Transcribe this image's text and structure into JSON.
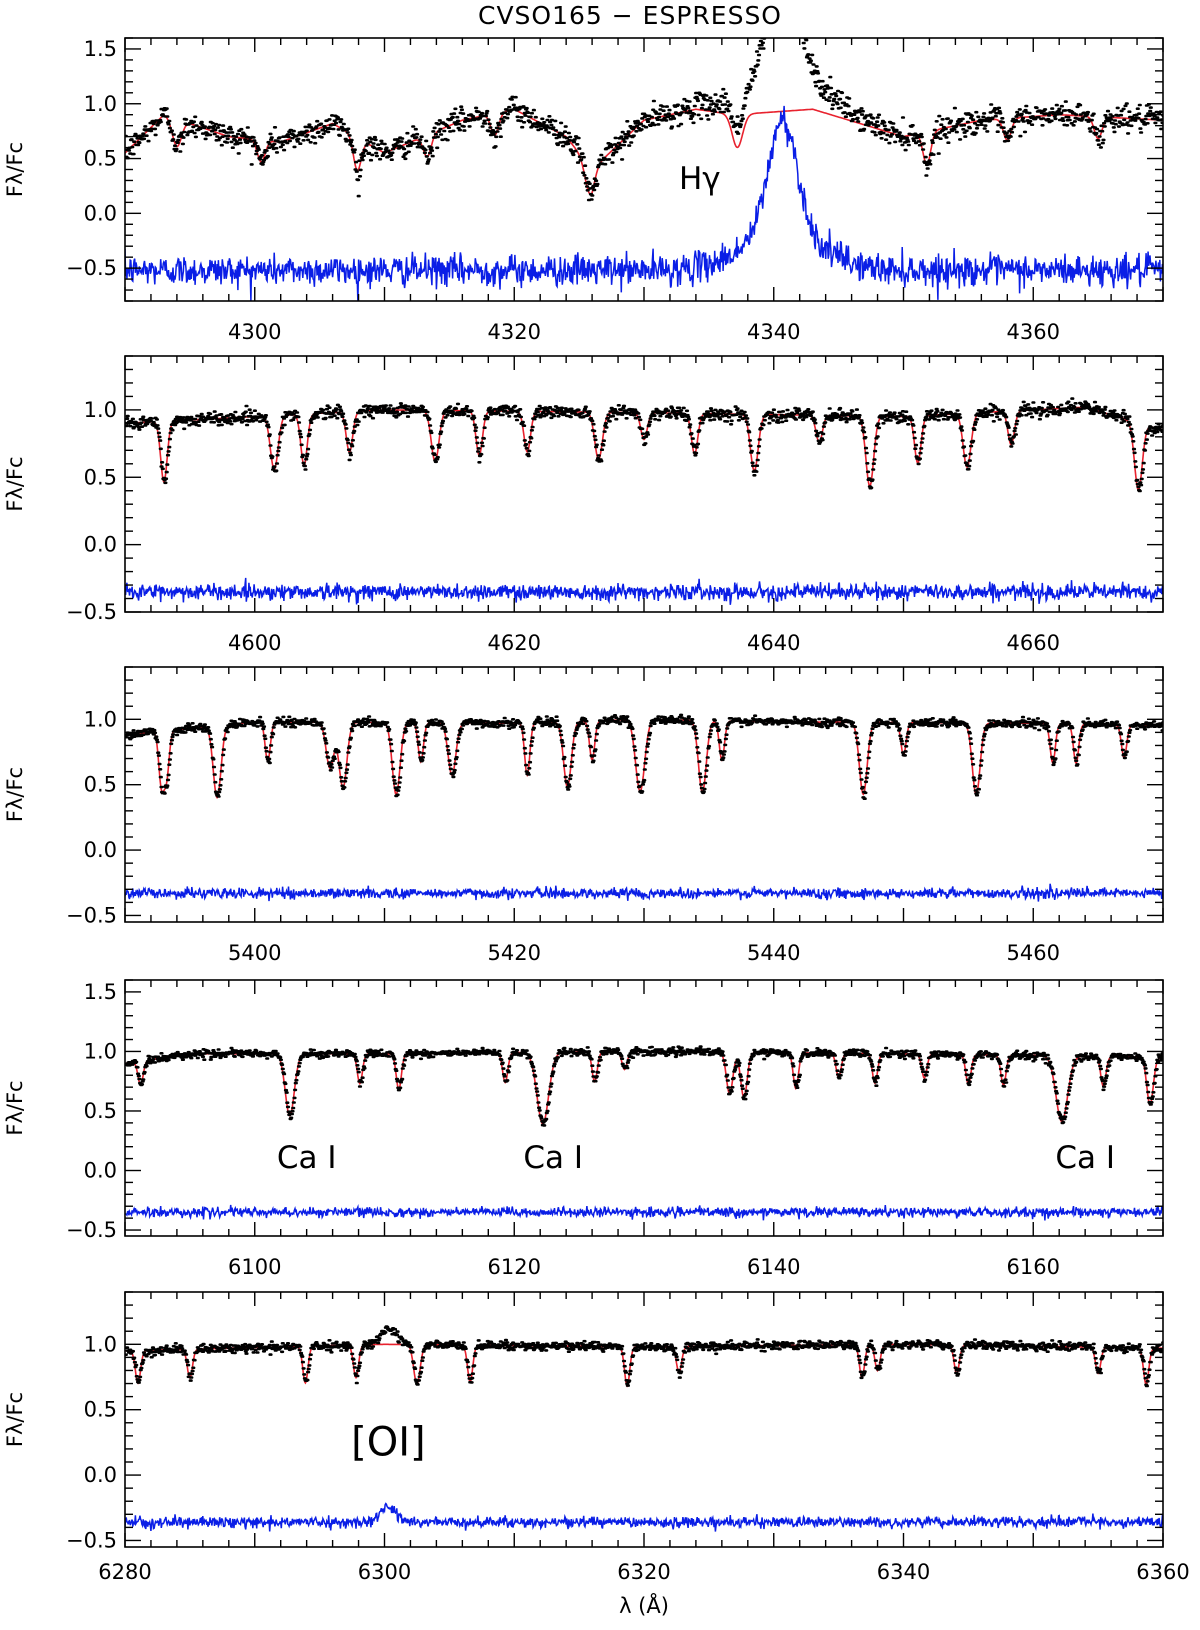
{
  "title": "CVSO165 − ESPRESSO",
  "colors": {
    "observed": "#000000",
    "model": "#e8222e",
    "residual": "#0a1ee6",
    "axes": "#000000"
  },
  "chart_data": [
    {
      "type": "line",
      "ylabel": "Fλ/Fc",
      "xlabel": "",
      "xlim": [
        4290,
        4370
      ],
      "ylim": [
        -0.8,
        1.6
      ],
      "xticks": [
        4300,
        4320,
        4340,
        4360
      ],
      "yticks": [
        -0.5,
        0.0,
        0.5,
        1.0,
        1.5
      ],
      "annotations": [
        {
          "text": "Hγ",
          "x": 4334.3,
          "y": 0.22
        }
      ],
      "series": [
        {
          "role": "observed",
          "marker": "dots"
        },
        {
          "role": "model",
          "marker": "line"
        },
        {
          "role": "residual",
          "marker": "line"
        }
      ],
      "continuum": [
        [
          4290,
          0.55
        ],
        [
          4293,
          0.9
        ],
        [
          4298,
          0.7
        ],
        [
          4302,
          0.65
        ],
        [
          4306,
          0.82
        ],
        [
          4310,
          0.55
        ],
        [
          4316,
          0.85
        ],
        [
          4320,
          0.95
        ],
        [
          4324,
          0.7
        ],
        [
          4326,
          0.4
        ],
        [
          4330,
          0.85
        ],
        [
          4334,
          0.95
        ],
        [
          4337,
          0.9
        ],
        [
          4343,
          0.95
        ],
        [
          4350,
          0.7
        ],
        [
          4356,
          0.85
        ],
        [
          4362,
          0.9
        ],
        [
          4370,
          0.85
        ]
      ],
      "absorption_lines": [
        [
          4294,
          0.25,
          0.35
        ],
        [
          4300.5,
          0.2,
          0.3
        ],
        [
          4307.9,
          0.3,
          0.3
        ],
        [
          4313.3,
          0.2,
          0.3
        ],
        [
          4318.5,
          0.2,
          0.3
        ],
        [
          4325.8,
          0.25,
          0.35
        ],
        [
          4337.2,
          0.3,
          0.4
        ],
        [
          4351.8,
          0.3,
          0.3
        ],
        [
          4358,
          0.2,
          0.3
        ],
        [
          4365,
          0.2,
          0.3
        ]
      ],
      "emission": {
        "center": 4340.7,
        "peak_residual": 0.85,
        "baseline_residual": -0.52,
        "peak_observed": 1.6
      },
      "residual_baseline": -0.52,
      "noise_level": 0.07
    },
    {
      "type": "line",
      "ylabel": "Fλ/Fc",
      "xlabel": "",
      "xlim": [
        4590,
        4670
      ],
      "ylim": [
        -0.5,
        1.4
      ],
      "xticks": [
        4600,
        4620,
        4640,
        4660
      ],
      "yticks": [
        -0.5,
        0.0,
        0.5,
        1.0
      ],
      "annotations": [],
      "series": [
        {
          "role": "observed",
          "marker": "dots"
        },
        {
          "role": "model",
          "marker": "line"
        },
        {
          "role": "residual",
          "marker": "line"
        }
      ],
      "continuum": [
        [
          4590,
          0.9
        ],
        [
          4610,
          1.0
        ],
        [
          4630,
          0.98
        ],
        [
          4650,
          0.95
        ],
        [
          4664,
          1.02
        ],
        [
          4670,
          0.85
        ]
      ],
      "absorption_lines": [
        [
          4593,
          0.45,
          0.25
        ],
        [
          4601.5,
          0.4,
          0.3
        ],
        [
          4603.8,
          0.38,
          0.25
        ],
        [
          4607.3,
          0.3,
          0.25
        ],
        [
          4613.9,
          0.38,
          0.3
        ],
        [
          4617.3,
          0.33,
          0.25
        ],
        [
          4621,
          0.3,
          0.25
        ],
        [
          4626.5,
          0.35,
          0.3
        ],
        [
          4630,
          0.2,
          0.25
        ],
        [
          4633.9,
          0.3,
          0.25
        ],
        [
          4638.5,
          0.42,
          0.3
        ],
        [
          4643.5,
          0.2,
          0.25
        ],
        [
          4647.4,
          0.52,
          0.3
        ],
        [
          4651.1,
          0.35,
          0.25
        ],
        [
          4654.9,
          0.4,
          0.3
        ],
        [
          4658.3,
          0.25,
          0.25
        ],
        [
          4668.1,
          0.5,
          0.3
        ]
      ],
      "residual_baseline": -0.35,
      "noise_level": 0.03
    },
    {
      "type": "line",
      "ylabel": "Fλ/Fc",
      "xlabel": "",
      "xlim": [
        5390,
        5470
      ],
      "ylim": [
        -0.55,
        1.4
      ],
      "xticks": [
        5400,
        5420,
        5440,
        5460
      ],
      "yticks": [
        -0.5,
        0.0,
        0.5,
        1.0
      ],
      "annotations": [],
      "series": [
        {
          "role": "observed",
          "marker": "dots"
        },
        {
          "role": "model",
          "marker": "line"
        },
        {
          "role": "residual",
          "marker": "line"
        }
      ],
      "continuum": [
        [
          5390,
          0.88
        ],
        [
          5400,
          0.98
        ],
        [
          5420,
          0.97
        ],
        [
          5430,
          1.0
        ],
        [
          5440,
          0.98
        ],
        [
          5460,
          0.97
        ],
        [
          5470,
          0.95
        ]
      ],
      "absorption_lines": [
        [
          5397.1,
          0.55,
          0.3
        ],
        [
          5405.8,
          0.35,
          0.3
        ],
        [
          5406.8,
          0.5,
          0.3
        ],
        [
          5410.9,
          0.55,
          0.3
        ],
        [
          5415.2,
          0.4,
          0.3
        ],
        [
          5424.1,
          0.5,
          0.3
        ],
        [
          5429.7,
          0.55,
          0.35
        ],
        [
          5434.5,
          0.55,
          0.3
        ],
        [
          5446.9,
          0.55,
          0.3
        ],
        [
          5455.6,
          0.55,
          0.3
        ],
        [
          5392.8,
          0.4,
          0.2
        ],
        [
          5393.2,
          0.35,
          0.2
        ],
        [
          5401,
          0.3,
          0.2
        ],
        [
          5412.8,
          0.3,
          0.2
        ],
        [
          5421,
          0.4,
          0.2
        ],
        [
          5426,
          0.3,
          0.2
        ],
        [
          5436,
          0.3,
          0.2
        ],
        [
          5450,
          0.25,
          0.2
        ],
        [
          5461.5,
          0.3,
          0.2
        ],
        [
          5463.3,
          0.3,
          0.2
        ],
        [
          5467,
          0.25,
          0.2
        ]
      ],
      "residual_baseline": -0.33,
      "noise_level": 0.02
    },
    {
      "type": "line",
      "ylabel": "Fλ/Fc",
      "xlabel": "",
      "xlim": [
        6090,
        6170
      ],
      "ylim": [
        -0.55,
        1.6
      ],
      "xticks": [
        6100,
        6120,
        6140,
        6160
      ],
      "yticks": [
        -0.5,
        0.0,
        0.5,
        1.0,
        1.5
      ],
      "annotations": [
        {
          "text": "Ca I",
          "x": 6104,
          "y": 0.02
        },
        {
          "text": "Ca I",
          "x": 6123,
          "y": 0.02
        },
        {
          "text": "Ca I",
          "x": 6164,
          "y": 0.02
        }
      ],
      "series": [
        {
          "role": "observed",
          "marker": "dots"
        },
        {
          "role": "model",
          "marker": "line"
        },
        {
          "role": "residual",
          "marker": "line"
        }
      ],
      "continuum": [
        [
          6090,
          0.9
        ],
        [
          6095,
          0.98
        ],
        [
          6110,
          0.98
        ],
        [
          6130,
          1.0
        ],
        [
          6150,
          0.98
        ],
        [
          6170,
          0.95
        ]
      ],
      "absorption_lines": [
        [
          6102.7,
          0.52,
          0.35
        ],
        [
          6122.2,
          0.6,
          0.45
        ],
        [
          6162.2,
          0.55,
          0.45
        ],
        [
          6091.2,
          0.2,
          0.2
        ],
        [
          6108.1,
          0.25,
          0.2
        ],
        [
          6111.1,
          0.3,
          0.2
        ],
        [
          6119.3,
          0.25,
          0.2
        ],
        [
          6126.2,
          0.25,
          0.2
        ],
        [
          6128.5,
          0.15,
          0.2
        ],
        [
          6136.6,
          0.35,
          0.25
        ],
        [
          6137.7,
          0.38,
          0.25
        ],
        [
          6141.7,
          0.3,
          0.2
        ],
        [
          6145,
          0.2,
          0.2
        ],
        [
          6147.8,
          0.25,
          0.2
        ],
        [
          6151.6,
          0.2,
          0.2
        ],
        [
          6155,
          0.25,
          0.2
        ],
        [
          6157.7,
          0.25,
          0.2
        ],
        [
          6165.4,
          0.25,
          0.2
        ],
        [
          6169,
          0.4,
          0.25
        ]
      ],
      "residual_baseline": -0.35,
      "noise_level": 0.02
    },
    {
      "type": "line",
      "ylabel": "Fλ/Fc",
      "xlabel": "λ (Å)",
      "xlim": [
        6280,
        6360
      ],
      "ylim": [
        -0.55,
        1.4
      ],
      "xticks": [
        6280,
        6300,
        6320,
        6340,
        6360
      ],
      "yticks": [
        -0.5,
        0.0,
        0.5,
        1.0
      ],
      "annotations": [
        {
          "text": "[OI]",
          "x": 6300.3,
          "y": 0.15
        }
      ],
      "series": [
        {
          "role": "observed",
          "marker": "dots"
        },
        {
          "role": "model",
          "marker": "line"
        },
        {
          "role": "residual",
          "marker": "line"
        }
      ],
      "continuum": [
        [
          6280,
          0.95
        ],
        [
          6300,
          1.0
        ],
        [
          6320,
          0.98
        ],
        [
          6340,
          1.0
        ],
        [
          6360,
          0.97
        ]
      ],
      "absorption_lines": [
        [
          6281,
          0.25,
          0.2
        ],
        [
          6285,
          0.22,
          0.2
        ],
        [
          6293.9,
          0.28,
          0.2
        ],
        [
          6297.8,
          0.25,
          0.2
        ],
        [
          6302.5,
          0.3,
          0.25
        ],
        [
          6306.6,
          0.28,
          0.2
        ],
        [
          6318.7,
          0.3,
          0.2
        ],
        [
          6322.7,
          0.2,
          0.2
        ],
        [
          6336.8,
          0.25,
          0.2
        ],
        [
          6338,
          0.2,
          0.2
        ],
        [
          6344.1,
          0.22,
          0.2
        ],
        [
          6355,
          0.2,
          0.2
        ],
        [
          6358.7,
          0.28,
          0.2
        ]
      ],
      "emission": {
        "center": 6300.3,
        "peak_residual": -0.2,
        "baseline_residual": -0.36,
        "peak_observed": 1.1
      },
      "residual_baseline": -0.36,
      "noise_level": 0.02
    }
  ]
}
